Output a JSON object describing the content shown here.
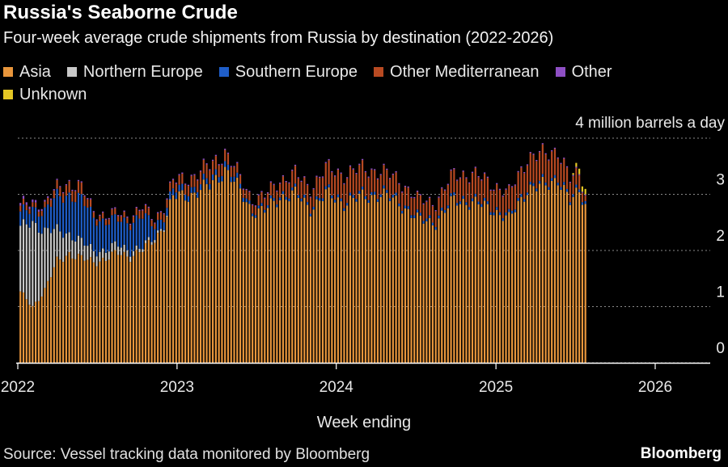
{
  "title": "Russia's Seaborne Crude",
  "subtitle": "Four-week average crude shipments from Russia by destination (2022-2026)",
  "legend": [
    {
      "label": "Asia",
      "color": "#e8963c"
    },
    {
      "label": "Northern Europe",
      "color": "#c8c8c8"
    },
    {
      "label": "Southern Europe",
      "color": "#1f5ec9"
    },
    {
      "label": "Other Mediterranean",
      "color": "#b84a22"
    },
    {
      "label": "Other",
      "color": "#8e4fc4"
    },
    {
      "label": "Unknown",
      "color": "#e4c624"
    }
  ],
  "unit_label": "4 million barrels a day",
  "x_axis_title": "Week ending",
  "source": "Source: Vessel tracking data monitored by Bloomberg",
  "brand": "Bloomberg",
  "chart_data": {
    "type": "bar",
    "stacked": true,
    "frequency": "weekly",
    "x_start": "2022-01-07",
    "ylim": [
      0,
      4
    ],
    "yticks": [
      0,
      1,
      2,
      3
    ],
    "top_label": "4 million barrels a day",
    "xticks": [
      "2022",
      "2023",
      "2024",
      "2025",
      "2026"
    ],
    "xlabel": "Week ending",
    "grid": "dotted horizontal",
    "legend_position": "top",
    "series_names": [
      "Asia",
      "Northern Europe",
      "Southern Europe",
      "Other Mediterranean",
      "Other",
      "Unknown"
    ],
    "anchors": {
      "columns": [
        "week_index",
        "Asia",
        "Northern Europe",
        "Southern Europe",
        "Other Mediterranean",
        "Other",
        "Unknown"
      ],
      "rows": [
        [
          0,
          1.25,
          1.15,
          0.25,
          0.1,
          0.05,
          0.0
        ],
        [
          4,
          1.0,
          1.5,
          0.25,
          0.08,
          0.05,
          0.0
        ],
        [
          8,
          1.3,
          1.05,
          0.35,
          0.1,
          0.03,
          0.0
        ],
        [
          12,
          1.8,
          0.55,
          0.6,
          0.15,
          0.02,
          0.0
        ],
        [
          16,
          1.95,
          0.35,
          0.7,
          0.2,
          0.02,
          0.0
        ],
        [
          20,
          1.85,
          0.3,
          0.75,
          0.2,
          0.02,
          0.0
        ],
        [
          24,
          1.8,
          0.2,
          0.6,
          0.1,
          0.02,
          0.0
        ],
        [
          28,
          1.85,
          0.15,
          0.5,
          0.1,
          0.02,
          0.0
        ],
        [
          32,
          1.95,
          0.15,
          0.45,
          0.1,
          0.02,
          0.0
        ],
        [
          36,
          1.9,
          0.1,
          0.5,
          0.1,
          0.02,
          0.0
        ],
        [
          40,
          2.0,
          0.05,
          0.55,
          0.15,
          0.02,
          0.0
        ],
        [
          44,
          2.2,
          0.05,
          0.2,
          0.1,
          0.02,
          0.0
        ],
        [
          47,
          2.45,
          0.03,
          0.15,
          0.15,
          0.02,
          0.0
        ],
        [
          50,
          2.95,
          0.0,
          0.12,
          0.15,
          0.02,
          0.0
        ],
        [
          56,
          3.0,
          0.0,
          0.1,
          0.2,
          0.02,
          0.0
        ],
        [
          62,
          3.15,
          0.0,
          0.1,
          0.25,
          0.02,
          0.0
        ],
        [
          67,
          3.45,
          0.0,
          0.1,
          0.2,
          0.02,
          0.0
        ],
        [
          72,
          3.05,
          0.0,
          0.08,
          0.15,
          0.02,
          0.0
        ],
        [
          76,
          2.7,
          0.0,
          0.05,
          0.15,
          0.02,
          0.0
        ],
        [
          80,
          2.7,
          0.0,
          0.05,
          0.2,
          0.02,
          0.0
        ],
        [
          85,
          2.95,
          0.0,
          0.05,
          0.25,
          0.02,
          0.0
        ],
        [
          90,
          3.0,
          0.0,
          0.05,
          0.3,
          0.02,
          0.0
        ],
        [
          95,
          2.75,
          0.0,
          0.05,
          0.3,
          0.02,
          0.0
        ],
        [
          100,
          3.0,
          0.0,
          0.05,
          0.4,
          0.02,
          0.0
        ],
        [
          106,
          2.85,
          0.0,
          0.05,
          0.45,
          0.02,
          0.0
        ],
        [
          112,
          2.95,
          0.0,
          0.05,
          0.45,
          0.02,
          0.0
        ],
        [
          118,
          3.0,
          0.0,
          0.05,
          0.35,
          0.02,
          0.0
        ],
        [
          124,
          2.85,
          0.0,
          0.05,
          0.35,
          0.02,
          0.0
        ],
        [
          130,
          2.55,
          0.0,
          0.05,
          0.3,
          0.02,
          0.0
        ],
        [
          136,
          2.5,
          0.0,
          0.05,
          0.3,
          0.02,
          0.0
        ],
        [
          142,
          2.9,
          0.0,
          0.05,
          0.4,
          0.02,
          0.0
        ],
        [
          148,
          2.85,
          0.0,
          0.05,
          0.45,
          0.02,
          0.0
        ],
        [
          154,
          2.75,
          0.0,
          0.05,
          0.4,
          0.02,
          0.0
        ],
        [
          160,
          2.55,
          0.0,
          0.05,
          0.4,
          0.02,
          0.0
        ],
        [
          166,
          3.1,
          0.0,
          0.05,
          0.5,
          0.02,
          0.0
        ],
        [
          172,
          3.15,
          0.0,
          0.05,
          0.5,
          0.02,
          0.0
        ],
        [
          176,
          3.3,
          0.0,
          0.05,
          0.45,
          0.02,
          0.0
        ],
        [
          180,
          2.85,
          0.0,
          0.05,
          0.35,
          0.02,
          0.0
        ],
        [
          183,
          3.05,
          0.0,
          0.05,
          0.25,
          0.02,
          0.1
        ],
        [
          185,
          2.85,
          0.0,
          0.05,
          0.1,
          0.02,
          0.1
        ]
      ]
    }
  }
}
